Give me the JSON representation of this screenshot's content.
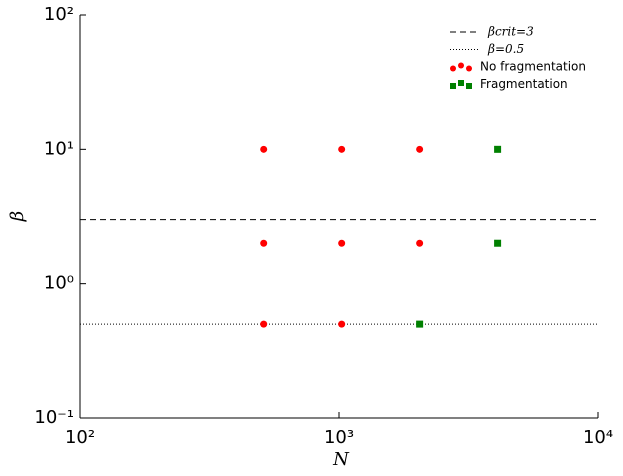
{
  "chart_data": {
    "type": "scatter",
    "xlabel": "N",
    "ylabel": "β",
    "xscale": "log",
    "yscale": "log",
    "xlim": [
      100,
      10000
    ],
    "ylim": [
      0.1,
      100
    ],
    "xticks": [
      {
        "value": 100,
        "label": "10²"
      },
      {
        "value": 1000,
        "label": "10³"
      },
      {
        "value": 10000,
        "label": "10⁴"
      }
    ],
    "yticks": [
      {
        "value": 0.1,
        "label": "10⁻¹"
      },
      {
        "value": 1,
        "label": "10⁰"
      },
      {
        "value": 10,
        "label": "10¹"
      },
      {
        "value": 100,
        "label": "10²"
      }
    ],
    "legend": "upper right",
    "hlines": [
      {
        "name": "βcrit=3",
        "value": 3,
        "style": "dashed",
        "color": "#000000"
      },
      {
        "name": "β=0.5",
        "value": 0.5,
        "style": "dotted",
        "color": "#000000"
      }
    ],
    "series": [
      {
        "name": "No fragmentation",
        "color": "#ff0000",
        "marker": "circle",
        "x": [
          512,
          1024,
          2048,
          512,
          1024,
          2048,
          512,
          1024
        ],
        "values": [
          10,
          10,
          10,
          2,
          2,
          2,
          0.5,
          0.5
        ]
      },
      {
        "name": "Fragmentation",
        "color": "#008000",
        "marker": "square",
        "x": [
          4096,
          4096,
          2048
        ],
        "values": [
          10,
          2,
          0.5
        ]
      }
    ]
  }
}
